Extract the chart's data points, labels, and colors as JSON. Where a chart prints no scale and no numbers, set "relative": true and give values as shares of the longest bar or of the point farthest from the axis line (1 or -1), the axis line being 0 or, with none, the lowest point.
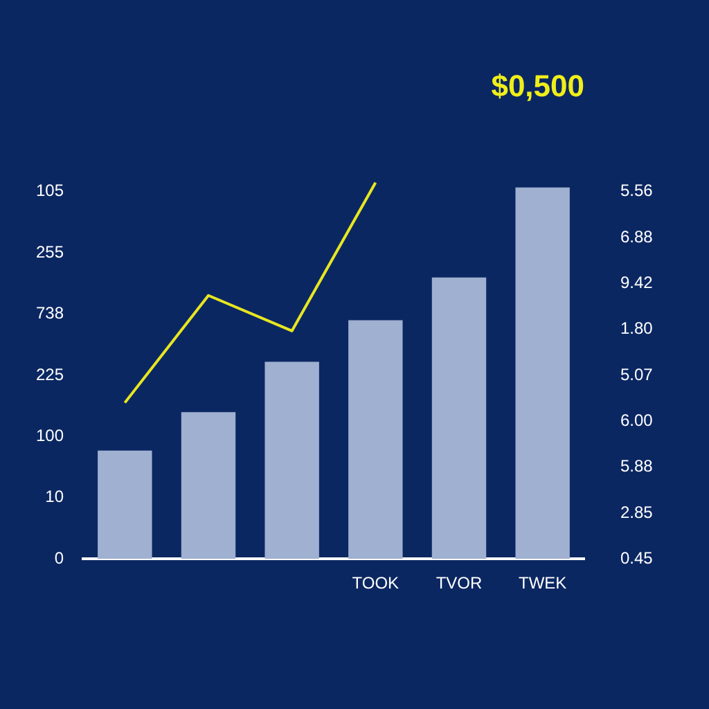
{
  "chart_data": {
    "type": "bar",
    "title": "$0,500",
    "relative": true,
    "categories": [
      null,
      null,
      null,
      "TOOK",
      "TVOR",
      "TWEK"
    ],
    "series": [
      {
        "color": "#9fb0d0",
        "values": [
          0.288,
          0.39,
          0.524,
          0.634,
          0.748,
          0.987
        ]
      },
      {
        "type": "line",
        "color": "#e8e620",
        "values": [
          0.415,
          0.7,
          0.606,
          1,
          null,
          null
        ]
      }
    ],
    "annotations": [
      "105\n255\n738\n225\n100\n10\n0",
      "5.56\n6.88\n9.42\n1.80\n5.07\n6.00\n5.88\n2.85\n0.45"
    ],
    "grid": false,
    "legend": false,
    "marker": "none",
    "line_style": "solid"
  }
}
